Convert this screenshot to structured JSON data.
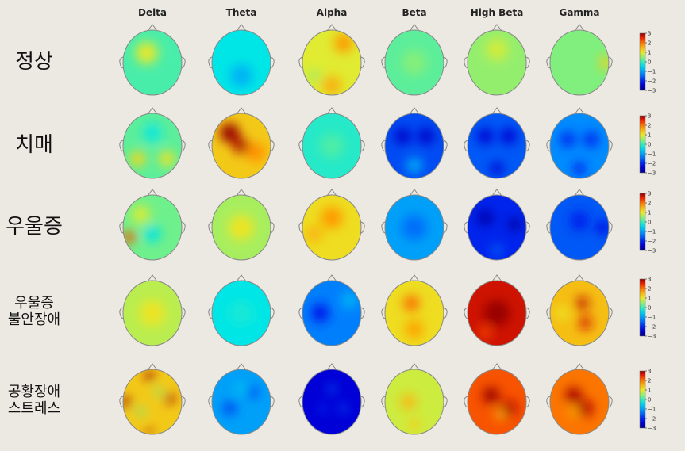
{
  "bands": [
    "Delta",
    "Theta",
    "Alpha",
    "Beta",
    "High Beta",
    "Gamma"
  ],
  "rows": [
    {
      "label_lines": [
        "정상"
      ],
      "maps": [
        {
          "base": 0.1,
          "blobs": [
            [
              0.4,
              0.35,
              0.8,
              0.35
            ],
            [
              -0.3,
              0.65,
              -0.4,
              0.3
            ]
          ]
        },
        {
          "base": -0.3,
          "blobs": [
            [
              0.5,
              0.7,
              -0.5,
              0.35
            ]
          ]
        },
        {
          "base": 0.9,
          "blobs": [
            [
              0.7,
              0.2,
              0.8,
              0.3
            ],
            [
              0.5,
              0.85,
              0.6,
              0.3
            ],
            [
              0.2,
              0.7,
              -0.3,
              0.2
            ]
          ]
        },
        {
          "base": 0.2,
          "blobs": [
            [
              0.5,
              0.5,
              0.2,
              0.4
            ]
          ]
        },
        {
          "base": 0.5,
          "blobs": [
            [
              0.5,
              0.3,
              0.3,
              0.35
            ]
          ]
        },
        {
          "base": 0.4,
          "blobs": [
            [
              0.95,
              0.5,
              0.8,
              0.2
            ]
          ]
        }
      ]
    },
    {
      "label_lines": [
        "치매"
      ],
      "maps": [
        {
          "base": 0.2,
          "blobs": [
            [
              0.25,
              0.7,
              0.9,
              0.25
            ],
            [
              0.75,
              0.7,
              0.8,
              0.25
            ],
            [
              0.5,
              0.3,
              -0.4,
              0.3
            ]
          ]
        },
        {
          "base": 1.3,
          "blobs": [
            [
              0.3,
              0.3,
              2.0,
              0.3
            ],
            [
              0.5,
              0.5,
              1.5,
              0.25
            ],
            [
              0.75,
              0.6,
              0.5,
              0.3
            ]
          ]
        },
        {
          "base": -0.1,
          "blobs": [
            [
              0.5,
              0.5,
              0.2,
              0.4
            ]
          ]
        },
        {
          "base": -1.7,
          "blobs": [
            [
              0.3,
              0.35,
              -0.8,
              0.25
            ],
            [
              0.7,
              0.35,
              -0.8,
              0.25
            ],
            [
              0.5,
              0.8,
              0.8,
              0.25
            ]
          ]
        },
        {
          "base": -1.6,
          "blobs": [
            [
              0.3,
              0.35,
              -0.8,
              0.25
            ],
            [
              0.7,
              0.35,
              -0.8,
              0.25
            ],
            [
              0.5,
              0.85,
              -0.8,
              0.2
            ]
          ]
        },
        {
          "base": -1.2,
          "blobs": [
            [
              0.3,
              0.4,
              -0.7,
              0.25
            ],
            [
              0.7,
              0.4,
              -0.7,
              0.25
            ],
            [
              0.5,
              0.85,
              -0.8,
              0.2
            ]
          ]
        }
      ]
    },
    {
      "label_lines": [
        "우울증"
      ],
      "maps": [
        {
          "base": 0.3,
          "blobs": [
            [
              0.1,
              0.65,
              1.8,
              0.2
            ],
            [
              0.3,
              0.3,
              0.5,
              0.3
            ],
            [
              0.5,
              0.6,
              -0.6,
              0.25
            ]
          ]
        },
        {
          "base": 0.6,
          "blobs": [
            [
              0.5,
              0.5,
              0.4,
              0.4
            ]
          ]
        },
        {
          "base": 1.1,
          "blobs": [
            [
              0.5,
              0.35,
              0.6,
              0.35
            ],
            [
              0.2,
              0.6,
              0.4,
              0.25
            ]
          ]
        },
        {
          "base": -1.0,
          "blobs": [
            [
              0.5,
              0.5,
              -0.4,
              0.4
            ]
          ]
        },
        {
          "base": -2.0,
          "blobs": [
            [
              0.3,
              0.35,
              -0.7,
              0.25
            ],
            [
              0.8,
              0.45,
              -0.8,
              0.2
            ],
            [
              0.5,
              0.85,
              0.4,
              0.2
            ]
          ]
        },
        {
          "base": -1.6,
          "blobs": [
            [
              0.5,
              0.4,
              -0.4,
              0.3
            ],
            [
              0.9,
              0.5,
              -0.7,
              0.2
            ]
          ]
        }
      ]
    },
    {
      "label_lines": [
        "우울증",
        "불안장애"
      ],
      "maps": [
        {
          "base": 0.7,
          "blobs": [
            [
              0.5,
              0.5,
              0.3,
              0.4
            ]
          ]
        },
        {
          "base": -0.3,
          "blobs": [
            [
              0.5,
              0.5,
              0.1,
              0.4
            ]
          ]
        },
        {
          "base": -1.3,
          "blobs": [
            [
              0.3,
              0.5,
              -0.7,
              0.3
            ],
            [
              0.8,
              0.3,
              0.5,
              0.25
            ]
          ]
        },
        {
          "base": 1.1,
          "blobs": [
            [
              0.45,
              0.35,
              0.9,
              0.25
            ],
            [
              0.5,
              0.75,
              0.5,
              0.3
            ]
          ]
        },
        {
          "base": 2.7,
          "blobs": [
            [
              0.5,
              0.5,
              0.3,
              0.4
            ],
            [
              0.3,
              0.8,
              -0.4,
              0.2
            ]
          ]
        },
        {
          "base": 1.4,
          "blobs": [
            [
              0.55,
              0.35,
              1.3,
              0.2
            ],
            [
              0.6,
              0.65,
              1.2,
              0.2
            ],
            [
              0.2,
              0.5,
              -0.4,
              0.2
            ]
          ]
        }
      ]
    },
    {
      "label_lines": [
        "공황장애",
        "스트레스"
      ],
      "maps": [
        {
          "base": 1.3,
          "blobs": [
            [
              0.05,
              0.5,
              2.0,
              0.15
            ],
            [
              0.45,
              0.1,
              2.0,
              0.15
            ],
            [
              0.8,
              0.45,
              1.6,
              0.15
            ],
            [
              0.45,
              0.95,
              1.8,
              0.1
            ],
            [
              0.3,
              0.65,
              -1.0,
              0.12
            ],
            [
              0.6,
              0.35,
              -0.9,
              0.12
            ]
          ]
        },
        {
          "base": -1.0,
          "blobs": [
            [
              0.3,
              0.6,
              -0.8,
              0.2
            ],
            [
              0.7,
              0.35,
              -0.6,
              0.2
            ],
            [
              0.5,
              0.3,
              0.5,
              0.15
            ]
          ]
        },
        {
          "base": -2.4,
          "blobs": [
            [
              0.5,
              0.3,
              0.9,
              0.12
            ],
            [
              0.7,
              0.6,
              0.8,
              0.12
            ],
            [
              0.35,
              0.6,
              0.5,
              0.12
            ]
          ]
        },
        {
          "base": 0.8,
          "blobs": [
            [
              0.4,
              0.5,
              0.6,
              0.25
            ],
            [
              0.5,
              0.85,
              0.4,
              0.2
            ]
          ]
        },
        {
          "base": 2.2,
          "blobs": [
            [
              0.4,
              0.4,
              0.8,
              0.25
            ],
            [
              0.7,
              0.6,
              0.6,
              0.25
            ],
            [
              0.55,
              0.7,
              -0.8,
              0.15
            ]
          ]
        },
        {
          "base": 2.0,
          "blobs": [
            [
              0.4,
              0.4,
              0.9,
              0.25
            ],
            [
              0.6,
              0.6,
              0.8,
              0.25
            ],
            [
              0.4,
              0.65,
              -0.5,
              0.15
            ]
          ]
        }
      ]
    }
  ],
  "colorbar_ticks": [
    "3",
    "2",
    "1",
    "0",
    "−1",
    "−2",
    "−3"
  ]
}
